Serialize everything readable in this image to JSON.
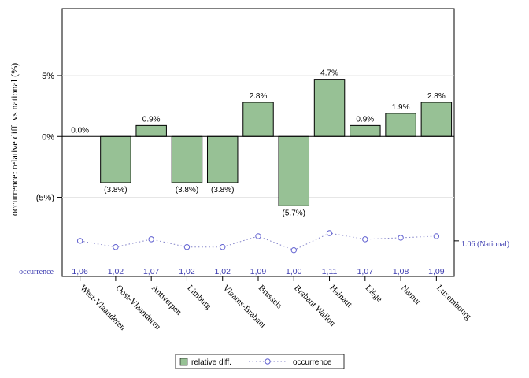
{
  "chart_data": {
    "type": "bar",
    "title": "",
    "ylabel": "occurrence: relative diff. vs national (%)",
    "ylim": [
      -0.115,
      0.105
    ],
    "yticks": [
      {
        "value": 0.05,
        "label": "5%"
      },
      {
        "value": 0.0,
        "label": "0%"
      },
      {
        "value": -0.05,
        "label": "(5%)"
      }
    ],
    "grid": true,
    "legend_position": "bottom-center",
    "categories": [
      "West-Vlaanderen",
      "Oost-Vlaanderen",
      "Antwerpen",
      "Limburg",
      "Vlaams-Brabant",
      "Brussels",
      "Brabant Wallon",
      "Hainaut",
      "Liège",
      "Namur",
      "Luxembourg"
    ],
    "series": [
      {
        "name": "relative diff.",
        "type": "bar",
        "values": [
          0.0,
          -0.038,
          0.009,
          -0.038,
          -0.038,
          0.028,
          -0.057,
          0.047,
          0.009,
          0.019,
          0.028
        ],
        "labels": [
          "0.0%",
          "(3.8%)",
          "0.9%",
          "(3.8%)",
          "(3.8%)",
          "2.8%",
          "(5.7%)",
          "4.7%",
          "0.9%",
          "1.9%",
          "2.8%"
        ],
        "color": "#97c195",
        "edge_color": "#000000"
      },
      {
        "name": "occurrence",
        "type": "line",
        "values": [
          1.06,
          1.02,
          1.07,
          1.02,
          1.02,
          1.09,
          1.0,
          1.11,
          1.07,
          1.08,
          1.09
        ],
        "labels": [
          "1,06",
          "1,02",
          "1,07",
          "1,02",
          "1,02",
          "1,09",
          "1,00",
          "1,11",
          "1,07",
          "1,08",
          "1,09"
        ],
        "row_label": "occurrence",
        "ylim": [
          0.968,
          1.11
        ],
        "color": "#5454c8"
      }
    ],
    "reference": {
      "value": 1.06,
      "label": "1.06 (National)"
    }
  }
}
